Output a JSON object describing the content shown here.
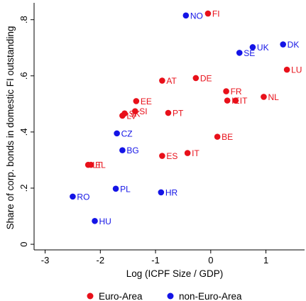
{
  "chart_data": {
    "type": "scatter",
    "xlabel": "Log (ICPF Size / GDP)",
    "ylabel": "Share of corp. bonds in domestic FI outstanding",
    "xlim": [
      -3.2,
      1.7
    ],
    "ylim": [
      -0.02,
      0.86
    ],
    "x_ticks": [
      -3,
      -2,
      -1,
      0,
      1
    ],
    "y_ticks": [
      0,
      0.2,
      0.4,
      0.6,
      0.8
    ],
    "y_tick_labels": [
      "0",
      ".2",
      ".4",
      ".6",
      ".8"
    ],
    "grid": false,
    "legend_position": "bottom",
    "colors": {
      "euro": "#e8101a",
      "non_euro": "#1414e6"
    },
    "series": [
      {
        "name": "Euro-Area",
        "color": "#e8101a",
        "points": [
          {
            "label": "FI",
            "x": -0.05,
            "y": 0.822
          },
          {
            "label": "LU",
            "x": 1.38,
            "y": 0.622
          },
          {
            "label": "DE",
            "x": -0.27,
            "y": 0.592
          },
          {
            "label": "AT",
            "x": -0.88,
            "y": 0.583
          },
          {
            "label": "FR",
            "x": 0.28,
            "y": 0.545
          },
          {
            "label": "NL",
            "x": 0.96,
            "y": 0.525
          },
          {
            "label": "IE",
            "x": 0.3,
            "y": 0.512
          },
          {
            "label": "IT",
            "x": 0.45,
            "y": 0.512
          },
          {
            "label": "EE",
            "x": -1.35,
            "y": 0.51
          },
          {
            "label": "PT",
            "x": -0.77,
            "y": 0.468
          },
          {
            "label": "SI",
            "x": -1.37,
            "y": 0.474
          },
          {
            "label": "SK",
            "x": -1.56,
            "y": 0.466
          },
          {
            "label": "LV",
            "x": -1.6,
            "y": 0.458
          },
          {
            "label": "BE",
            "x": 0.12,
            "y": 0.383
          },
          {
            "label": "IT",
            "x": -0.42,
            "y": 0.325
          },
          {
            "label": "ES",
            "x": -0.88,
            "y": 0.315
          },
          {
            "label": "LT",
            "x": -2.22,
            "y": 0.283
          },
          {
            "label": "EL",
            "x": -2.17,
            "y": 0.283
          }
        ]
      },
      {
        "name": "non-Euro-Area",
        "color": "#1414e6",
        "points": [
          {
            "label": "NO",
            "x": -0.45,
            "y": 0.815
          },
          {
            "label": "UK",
            "x": 0.76,
            "y": 0.702
          },
          {
            "label": "DK",
            "x": 1.31,
            "y": 0.712
          },
          {
            "label": "SE",
            "x": 0.52,
            "y": 0.682
          },
          {
            "label": "CZ",
            "x": -1.7,
            "y": 0.395
          },
          {
            "label": "BG",
            "x": -1.6,
            "y": 0.335
          },
          {
            "label": "PL",
            "x": -1.72,
            "y": 0.198
          },
          {
            "label": "HR",
            "x": -0.9,
            "y": 0.185
          },
          {
            "label": "RO",
            "x": -2.5,
            "y": 0.17
          },
          {
            "label": "HU",
            "x": -2.1,
            "y": 0.083
          }
        ]
      }
    ]
  }
}
